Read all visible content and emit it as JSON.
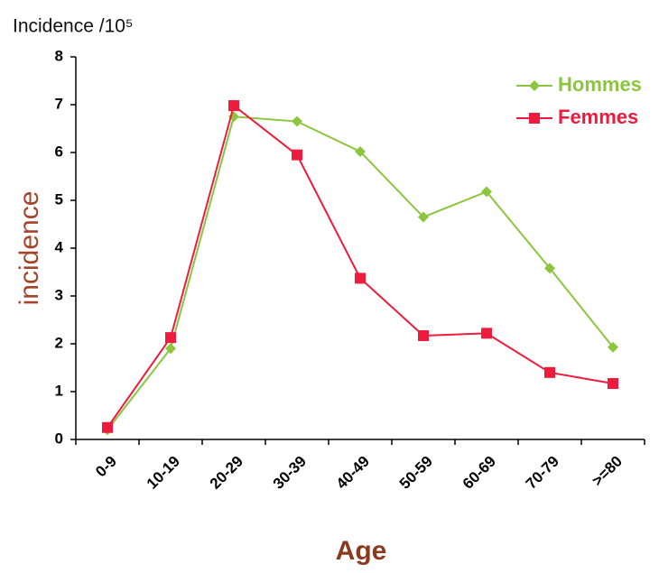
{
  "chart_data": {
    "type": "line",
    "title": "Incidence /10⁵",
    "ylabel": "incidence",
    "xlabel": "Age",
    "categories": [
      "0-9",
      "10-19",
      "20-29",
      "30-39",
      "40-49",
      "50-59",
      "60-69",
      "70-79",
      ">=80"
    ],
    "series": [
      {
        "name": "Hommes",
        "color": "#8cc63f",
        "marker": "diamond",
        "values": [
          0.2,
          1.9,
          6.75,
          6.65,
          6.02,
          4.65,
          5.18,
          3.58,
          1.93
        ]
      },
      {
        "name": "Femmes",
        "color": "#ee1b3c",
        "marker": "square",
        "values": [
          0.25,
          2.13,
          6.98,
          5.95,
          3.37,
          2.17,
          2.22,
          1.4,
          1.17
        ]
      }
    ],
    "ylim": [
      0,
      8
    ],
    "yticks": [
      0,
      1,
      2,
      3,
      4,
      5,
      6,
      7,
      8
    ],
    "grid": false,
    "legend": "upper right"
  }
}
